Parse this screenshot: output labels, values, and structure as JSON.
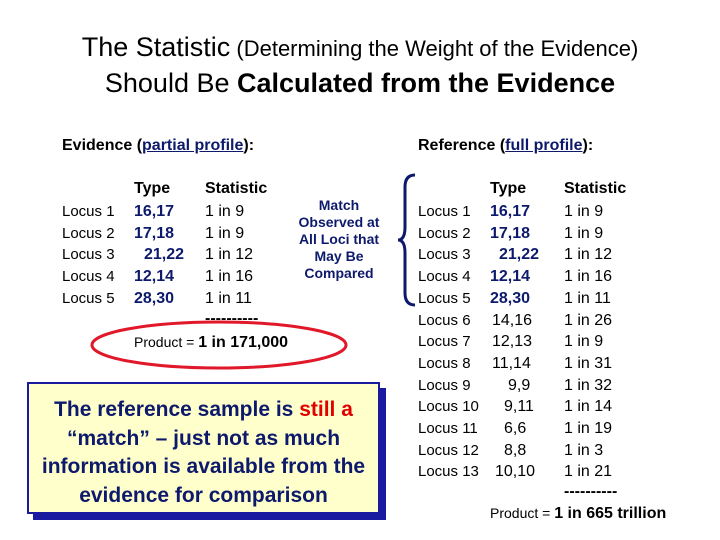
{
  "title": {
    "line1_part1": "The Statistic",
    "line1_part2": " (Determining the Weight of the Evidence)",
    "line2_part1": "Should Be ",
    "line2_part2": "Calculated from the Evidence"
  },
  "evidence": {
    "heading_pre": "Evidence (",
    "heading_link": "partial profile",
    "heading_post": "):",
    "type_header": "Type",
    "stat_header": "Statistic",
    "rows": [
      {
        "locus": "Locus 1",
        "type": "16,17",
        "stat": "1 in 9"
      },
      {
        "locus": "Locus 2",
        "type": "17,18",
        "stat": "1 in 9"
      },
      {
        "locus": "Locus 3",
        "type": "21,22",
        "stat": "1 in 12"
      },
      {
        "locus": "Locus 4",
        "type": "12,14",
        "stat": "1 in 16"
      },
      {
        "locus": "Locus 5",
        "type": "28,30",
        "stat": "1 in 11"
      }
    ],
    "dashes": "----------",
    "product_label": "Product = ",
    "product_value": "1 in 171,000"
  },
  "match_note": [
    "Match",
    "Observed at",
    "All Loci that",
    "May Be",
    "Compared"
  ],
  "reference": {
    "heading_pre": "Reference (",
    "heading_link": "full profile",
    "heading_post": "):",
    "type_header": "Type",
    "stat_header": "Statistic",
    "rows": [
      {
        "locus": "Locus 1",
        "type": "16,17",
        "stat": "1 in 9"
      },
      {
        "locus": "Locus 2",
        "type": "17,18",
        "stat": "1 in 9"
      },
      {
        "locus": "Locus 3",
        "type": "21,22",
        "stat": "1 in 12"
      },
      {
        "locus": "Locus 4",
        "type": "12,14",
        "stat": "1 in 16"
      },
      {
        "locus": "Locus 5",
        "type": "28,30",
        "stat": "1 in 11"
      },
      {
        "locus": "Locus 6",
        "type": "14,16",
        "stat": "1 in 26"
      },
      {
        "locus": "Locus 7",
        "type": "12,13",
        "stat": "1 in 9"
      },
      {
        "locus": "Locus 8",
        "type": "11,14",
        "stat": "1 in 31"
      },
      {
        "locus": "Locus 9",
        "type": "9,9",
        "stat": "1 in 32"
      },
      {
        "locus": "Locus 10",
        "type": "9,11",
        "stat": "1 in 14"
      },
      {
        "locus": "Locus 11",
        "type": "6,6",
        "stat": "1 in 19"
      },
      {
        "locus": "Locus 12",
        "type": "8,8",
        "stat": "1 in 3"
      },
      {
        "locus": "Locus 13",
        "type": "10,10",
        "stat": "1 in 21"
      }
    ],
    "dashes": "----------",
    "product_label": "Product = ",
    "product_value": "1 in 665 trillion"
  },
  "callout": {
    "part1": "The reference sample is ",
    "red": "still a",
    "part2": "“match” – just not as much information is available from the evidence for comparison"
  },
  "colors": {
    "accent_blue": "#0d1a6b",
    "highlight_red": "#e00000",
    "callout_bg": "#ffffcc"
  }
}
